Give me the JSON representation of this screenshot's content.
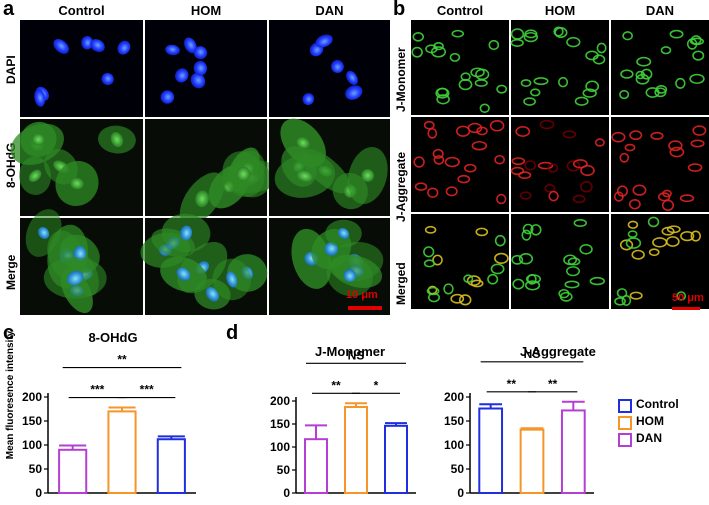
{
  "panels": {
    "a": {
      "letter": "a",
      "columns": [
        "Control",
        "HOM",
        "DAN"
      ],
      "rows": [
        "DAPI",
        "8-OHdG",
        "Merge"
      ],
      "scale_bar": "10 μm"
    },
    "b": {
      "letter": "b",
      "columns": [
        "Control",
        "HOM",
        "DAN"
      ],
      "rows": [
        "J-Monomer",
        "J-Aggregate",
        "Merged"
      ],
      "scale_bar": "50 μm"
    },
    "c": {
      "letter": "c"
    },
    "d": {
      "letter": "d"
    }
  },
  "legend": [
    {
      "name": "Control",
      "color": "#1f2fe0"
    },
    {
      "name": "HOM",
      "color": "#f5952a"
    },
    {
      "name": "DAN",
      "color": "#b43fd3"
    }
  ],
  "colors": {
    "control": "#1f2fe0",
    "hom": "#f5952a",
    "dan": "#b43fd3",
    "scale_bar": "#e00000"
  },
  "chart_data": [
    {
      "type": "bar",
      "title": "8-OHdG",
      "ylabel": "Mean fluoresence intensity",
      "ylim": [
        0,
        200
      ],
      "yticks": [
        "0",
        "50",
        "100",
        "150",
        "200"
      ],
      "categories": [
        "DAN",
        "HOM",
        "Control"
      ],
      "values": [
        90,
        170,
        112
      ],
      "errors": [
        9,
        8,
        6
      ],
      "colors": [
        "#b43fd3",
        "#f5952a",
        "#1f2fe0"
      ],
      "significance": [
        {
          "from": 0,
          "to": 1,
          "label": "***"
        },
        {
          "from": 1,
          "to": 2,
          "label": "***"
        },
        {
          "from": 0,
          "to": 2,
          "label": "**"
        }
      ]
    },
    {
      "type": "bar",
      "title": "J-Monomer",
      "ylabel": "",
      "ylim": [
        0,
        200
      ],
      "yticks": [
        "0",
        "50",
        "100",
        "150",
        "200"
      ],
      "categories": [
        "DAN",
        "HOM",
        "Control"
      ],
      "values": [
        117,
        187,
        146
      ],
      "errors": [
        30,
        8,
        6
      ],
      "colors": [
        "#b43fd3",
        "#f5952a",
        "#1f2fe0"
      ],
      "significance": [
        {
          "from": 0,
          "to": 1,
          "label": "**"
        },
        {
          "from": 1,
          "to": 2,
          "label": "*"
        },
        {
          "from": 0,
          "to": 2,
          "label": "NS"
        }
      ]
    },
    {
      "type": "bar",
      "title": "J-Aggregate",
      "ylabel": "",
      "ylim": [
        0,
        200
      ],
      "yticks": [
        "0",
        "50",
        "100",
        "150",
        "200"
      ],
      "categories": [
        "Control",
        "HOM",
        "DAN"
      ],
      "values": [
        176,
        132,
        172
      ],
      "errors": [
        9,
        3,
        18
      ],
      "colors": [
        "#1f2fe0",
        "#f5952a",
        "#b43fd3"
      ],
      "significance": [
        {
          "from": 0,
          "to": 1,
          "label": "**"
        },
        {
          "from": 1,
          "to": 2,
          "label": "**"
        },
        {
          "from": 0,
          "to": 2,
          "label": "NS"
        }
      ]
    }
  ]
}
